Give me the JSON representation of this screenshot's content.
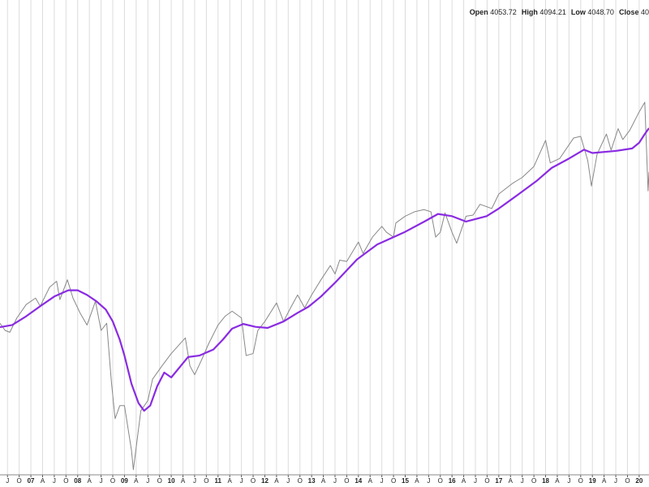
{
  "quote": [
    {
      "label": "Open",
      "value": "4053.72"
    },
    {
      "label": "High",
      "value": "4094.21"
    },
    {
      "label": "Low",
      "value": "4048.70"
    },
    {
      "label": "Close",
      "value": "40"
    }
  ],
  "chart_data": {
    "type": "line",
    "log_scale": true,
    "grid": true,
    "xlim": [
      2006.34,
      2020.21
    ],
    "ylim": [
      665,
      5300
    ],
    "xticks": [
      {
        "value": 2006.5,
        "label": "J"
      },
      {
        "value": 2006.75,
        "label": "O"
      },
      {
        "value": 2007,
        "label": "07"
      },
      {
        "value": 2007.25,
        "label": "A"
      },
      {
        "value": 2007.5,
        "label": "J"
      },
      {
        "value": 2007.75,
        "label": "O"
      },
      {
        "value": 2008,
        "label": "08"
      },
      {
        "value": 2008.25,
        "label": "A"
      },
      {
        "value": 2008.5,
        "label": "J"
      },
      {
        "value": 2008.75,
        "label": "O"
      },
      {
        "value": 2009,
        "label": "09"
      },
      {
        "value": 2009.25,
        "label": "A"
      },
      {
        "value": 2009.5,
        "label": "J"
      },
      {
        "value": 2009.75,
        "label": "O"
      },
      {
        "value": 2010,
        "label": "10"
      },
      {
        "value": 2010.25,
        "label": "A"
      },
      {
        "value": 2010.5,
        "label": "J"
      },
      {
        "value": 2010.75,
        "label": "O"
      },
      {
        "value": 2011,
        "label": "11"
      },
      {
        "value": 2011.25,
        "label": "A"
      },
      {
        "value": 2011.5,
        "label": "J"
      },
      {
        "value": 2011.75,
        "label": "O"
      },
      {
        "value": 2012,
        "label": "12"
      },
      {
        "value": 2012.25,
        "label": "A"
      },
      {
        "value": 2012.5,
        "label": "J"
      },
      {
        "value": 2012.75,
        "label": "O"
      },
      {
        "value": 2013,
        "label": "13"
      },
      {
        "value": 2013.25,
        "label": "A"
      },
      {
        "value": 2013.5,
        "label": "J"
      },
      {
        "value": 2013.75,
        "label": "O"
      },
      {
        "value": 2014,
        "label": "14"
      },
      {
        "value": 2014.25,
        "label": "A"
      },
      {
        "value": 2014.5,
        "label": "J"
      },
      {
        "value": 2014.75,
        "label": "O"
      },
      {
        "value": 2015,
        "label": "15"
      },
      {
        "value": 2015.25,
        "label": "A"
      },
      {
        "value": 2015.5,
        "label": "J"
      },
      {
        "value": 2015.75,
        "label": "O"
      },
      {
        "value": 2016,
        "label": "16"
      },
      {
        "value": 2016.25,
        "label": "A"
      },
      {
        "value": 2016.5,
        "label": "J"
      },
      {
        "value": 2016.75,
        "label": "O"
      },
      {
        "value": 2017,
        "label": "17"
      },
      {
        "value": 2017.25,
        "label": "A"
      },
      {
        "value": 2017.5,
        "label": "J"
      },
      {
        "value": 2017.75,
        "label": "O"
      },
      {
        "value": 2018,
        "label": "18"
      },
      {
        "value": 2018.25,
        "label": "A"
      },
      {
        "value": 2018.5,
        "label": "J"
      },
      {
        "value": 2018.75,
        "label": "O"
      },
      {
        "value": 2019,
        "label": "19"
      },
      {
        "value": 2019.25,
        "label": "A"
      },
      {
        "value": 2019.5,
        "label": "J"
      },
      {
        "value": 2019.75,
        "label": "O"
      },
      {
        "value": 2020,
        "label": "20"
      }
    ],
    "series": [
      {
        "color": "#888888",
        "x": [
          2006.34,
          2006.45,
          2006.55,
          2006.7,
          2006.9,
          2007.1,
          2007.2,
          2007.4,
          2007.55,
          2007.62,
          2007.78,
          2007.9,
          2008.05,
          2008.2,
          2008.38,
          2008.5,
          2008.62,
          2008.72,
          2008.8,
          2008.9,
          2009.0,
          2009.15,
          2009.19,
          2009.35,
          2009.5,
          2009.6,
          2009.8,
          2010.0,
          2010.3,
          2010.4,
          2010.5,
          2010.65,
          2010.8,
          2011.0,
          2011.15,
          2011.3,
          2011.5,
          2011.6,
          2011.75,
          2011.85,
          2012.0,
          2012.25,
          2012.4,
          2012.55,
          2012.7,
          2012.85,
          2013.0,
          2013.2,
          2013.4,
          2013.5,
          2013.6,
          2013.75,
          2014.0,
          2014.1,
          2014.3,
          2014.5,
          2014.6,
          2014.75,
          2014.8,
          2015.0,
          2015.2,
          2015.4,
          2015.55,
          2015.65,
          2015.75,
          2015.85,
          2016.0,
          2016.1,
          2016.3,
          2016.45,
          2016.6,
          2016.85,
          2017.0,
          2017.3,
          2017.5,
          2017.75,
          2018.0,
          2018.1,
          2018.3,
          2018.6,
          2018.75,
          2018.9,
          2018.98,
          2019.1,
          2019.3,
          2019.4,
          2019.55,
          2019.65,
          2019.8,
          2020.0,
          2020.12,
          2020.19,
          2020.21
        ],
        "values": [
          1290,
          1250,
          1240,
          1320,
          1400,
          1440,
          1390,
          1510,
          1550,
          1430,
          1560,
          1440,
          1350,
          1280,
          1420,
          1250,
          1290,
          1000,
          850,
          900,
          900,
          740,
          680,
          880,
          920,
          1010,
          1070,
          1130,
          1210,
          1070,
          1030,
          1100,
          1180,
          1280,
          1330,
          1360,
          1320,
          1120,
          1130,
          1250,
          1300,
          1410,
          1300,
          1380,
          1460,
          1380,
          1460,
          1560,
          1660,
          1600,
          1700,
          1690,
          1840,
          1750,
          1880,
          1970,
          1920,
          1880,
          2000,
          2060,
          2100,
          2120,
          2100,
          1880,
          1920,
          2090,
          1920,
          1830,
          2060,
          2070,
          2170,
          2130,
          2270,
          2380,
          2440,
          2560,
          2870,
          2600,
          2650,
          2900,
          2920,
          2630,
          2350,
          2700,
          2950,
          2750,
          3020,
          2880,
          3000,
          3250,
          3390,
          2300,
          2500
        ]
      },
      {
        "color": "#8a2be2",
        "x": [
          2006.34,
          2006.6,
          2006.9,
          2007.2,
          2007.5,
          2007.8,
          2008.0,
          2008.2,
          2008.4,
          2008.6,
          2008.75,
          2008.9,
          2009.0,
          2009.15,
          2009.3,
          2009.42,
          2009.55,
          2009.7,
          2009.85,
          2010.0,
          2010.36,
          2010.6,
          2010.9,
          2011.1,
          2011.3,
          2011.54,
          2011.8,
          2012.06,
          2012.4,
          2012.7,
          2012.93,
          2013.2,
          2013.5,
          2013.97,
          2014.4,
          2015.0,
          2015.4,
          2015.7,
          2016.0,
          2016.3,
          2016.74,
          2017.0,
          2017.4,
          2017.8,
          2018.13,
          2018.5,
          2018.82,
          2019.0,
          2019.5,
          2019.85,
          2020.0,
          2020.12,
          2020.21
        ],
        "values": [
          1268,
          1280,
          1330,
          1390,
          1450,
          1490,
          1490,
          1460,
          1420,
          1370,
          1300,
          1200,
          1120,
          990,
          910,
          880,
          900,
          980,
          1040,
          1018,
          1113,
          1120,
          1150,
          1200,
          1260,
          1286,
          1270,
          1264,
          1300,
          1350,
          1386,
          1450,
          1540,
          1705,
          1820,
          1924,
          2010,
          2080,
          2060,
          2012,
          2060,
          2130,
          2260,
          2400,
          2544,
          2650,
          2755,
          2715,
          2740,
          2770,
          2840,
          2950,
          3027
        ]
      }
    ]
  }
}
